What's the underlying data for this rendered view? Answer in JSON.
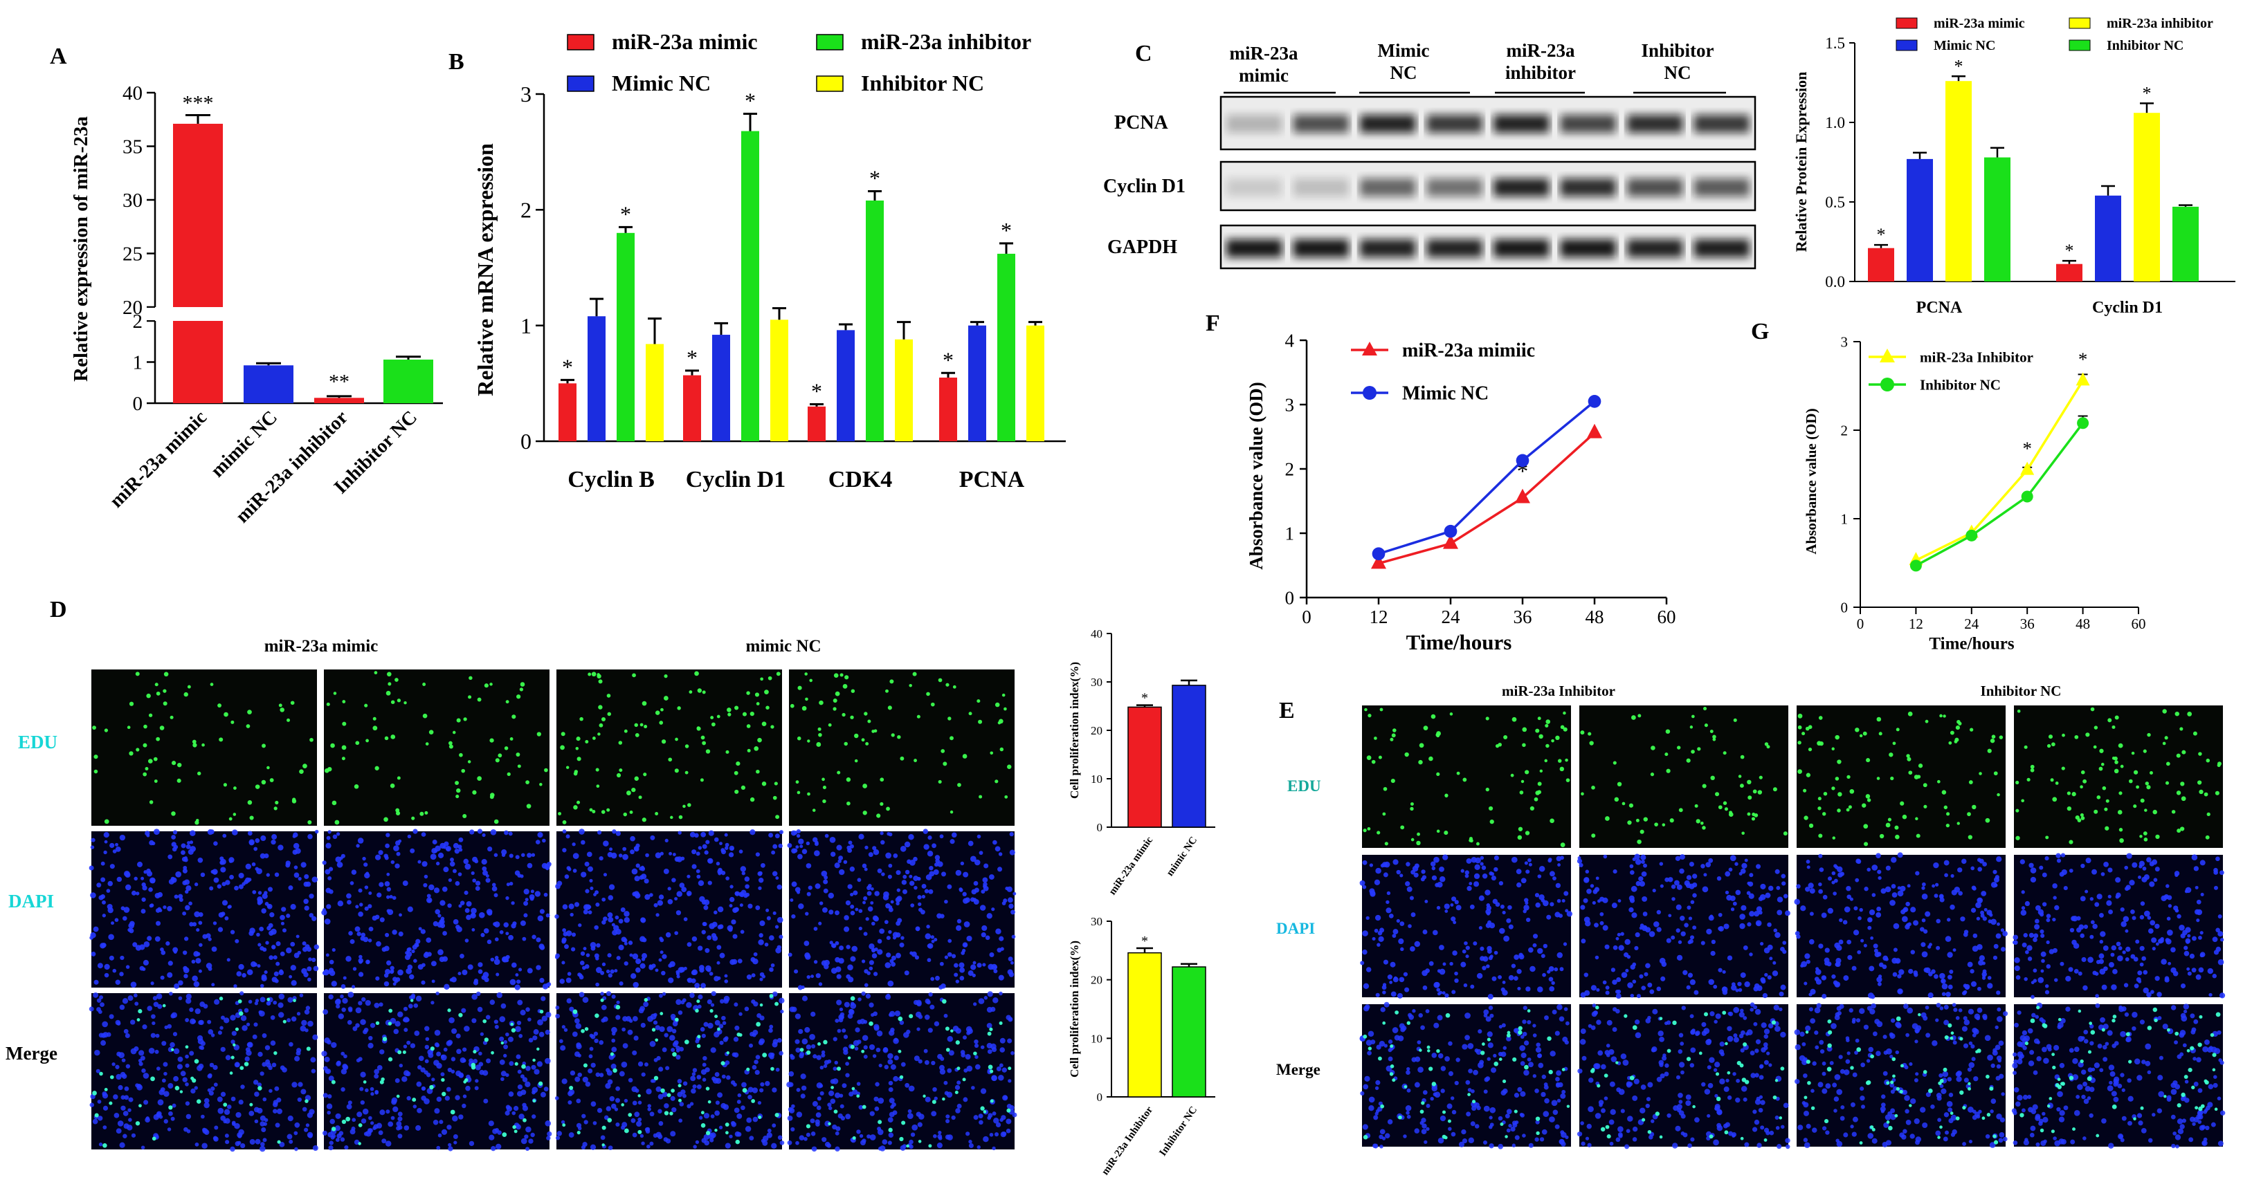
{
  "colors": {
    "red": "#ee1d23",
    "blue": "#1b2de0",
    "green": "#1ae01a",
    "yellow": "#ffff00",
    "black": "#000000",
    "cyan_label": "#17d6d6",
    "teal_label": "#15a89a",
    "fluor_green": "#3cff50",
    "fluor_blue": "#2638ff",
    "blot_bg": "#ececec"
  },
  "panels": {
    "A": {
      "letter": "A"
    },
    "B": {
      "letter": "B"
    },
    "C": {
      "letter": "C",
      "lanes": [
        {
          "line1": "miR-23a",
          "line2": "mimic"
        },
        {
          "line1": "Mimic",
          "line2": "NC"
        },
        {
          "line1": "miR-23a",
          "line2": "inhibitor"
        },
        {
          "line1": "Inhibitor",
          "line2": "NC"
        }
      ],
      "rows": [
        "PCNA",
        "Cyclin D1",
        "GAPDH"
      ]
    },
    "D": {
      "letter": "D",
      "headers": [
        "miR-23a mimic",
        "mimic NC"
      ],
      "rows": [
        "EDU",
        "DAPI",
        "Merge"
      ]
    },
    "E": {
      "letter": "E",
      "headers": [
        "miR-23a Inhibitor",
        "Inhibitor NC"
      ],
      "rows": [
        "EDU",
        "DAPI",
        "Merge"
      ]
    },
    "F": {
      "letter": "F"
    },
    "G": {
      "letter": "G"
    }
  },
  "chart_data": [
    {
      "id": "A",
      "type": "bar",
      "categories": [
        "miR-23a mimic",
        "mimic NC",
        "miR-23a inhibitor",
        "Inhibitor NC"
      ],
      "values": [
        37.1,
        0.92,
        0.13,
        1.06
      ],
      "errors": [
        0.8,
        0.05,
        0.04,
        0.07
      ],
      "colors": [
        "red",
        "blue",
        "red",
        "green"
      ],
      "significance": [
        "***",
        "",
        "**",
        ""
      ],
      "ylabel": "Relative expression of miR-23a",
      "axis_break": {
        "lower": [
          0,
          2
        ],
        "upper": [
          20,
          40
        ]
      },
      "lower_ticks": [
        "0",
        "1",
        "2"
      ],
      "upper_ticks": [
        "20",
        "25",
        "30",
        "35",
        "40"
      ]
    },
    {
      "id": "B",
      "type": "bar",
      "categories": [
        "Cyclin B",
        "Cyclin D1",
        "CDK4",
        "PCNA"
      ],
      "series": [
        {
          "name": "miR-23a mimic",
          "color": "red",
          "values": [
            0.5,
            0.57,
            0.3,
            0.55
          ],
          "errors": [
            0.03,
            0.04,
            0.02,
            0.04
          ],
          "sig": [
            "*",
            "*",
            "*",
            "*"
          ]
        },
        {
          "name": "Mimic NC",
          "color": "blue",
          "values": [
            1.08,
            0.92,
            0.96,
            1.0
          ],
          "errors": [
            0.15,
            0.1,
            0.05,
            0.03
          ],
          "sig": [
            "",
            "",
            "",
            ""
          ]
        },
        {
          "name": "miR-23a inhibitor",
          "color": "green",
          "values": [
            1.8,
            2.68,
            2.08,
            1.62
          ],
          "errors": [
            0.05,
            0.15,
            0.08,
            0.09
          ],
          "sig": [
            "*",
            "*",
            "*",
            "*"
          ]
        },
        {
          "name": "Inhibitor NC",
          "color": "yellow",
          "values": [
            0.84,
            1.05,
            0.88,
            1.0
          ],
          "errors": [
            0.22,
            0.1,
            0.15,
            0.03
          ],
          "sig": [
            "",
            "",
            "",
            ""
          ]
        }
      ],
      "ylabel": "Relative mRNA expression",
      "ylim": [
        0,
        3
      ],
      "yticks": [
        "0",
        "1",
        "2",
        "3"
      ]
    },
    {
      "id": "C2",
      "type": "bar",
      "categories": [
        "PCNA",
        "Cyclin D1"
      ],
      "series": [
        {
          "name": "miR-23a mimic",
          "color": "red",
          "values": [
            0.21,
            0.11
          ],
          "errors": [
            0.02,
            0.02
          ],
          "sig": [
            "*",
            "*"
          ]
        },
        {
          "name": "Mimic NC",
          "color": "blue",
          "values": [
            0.77,
            0.54
          ],
          "errors": [
            0.04,
            0.06
          ],
          "sig": [
            "",
            ""
          ]
        },
        {
          "name": "miR-23a inhibitor",
          "color": "yellow",
          "values": [
            1.26,
            1.06
          ],
          "errors": [
            0.03,
            0.06
          ],
          "sig": [
            "*",
            "*"
          ]
        },
        {
          "name": "Inhibitor NC",
          "color": "green",
          "values": [
            0.78,
            0.47
          ],
          "errors": [
            0.06,
            0.01
          ],
          "sig": [
            "",
            ""
          ]
        }
      ],
      "ylabel": "Relative Protein Expression",
      "ylim": [
        0,
        1.5
      ],
      "yticks": [
        "0.0",
        "0.5",
        "1.0",
        "1.5"
      ]
    },
    {
      "id": "F",
      "type": "line",
      "x": [
        12,
        24,
        36,
        48
      ],
      "series": [
        {
          "name": "miR-23a mimiic",
          "color": "red",
          "marker": "triangle",
          "values": [
            0.53,
            0.84,
            1.55,
            2.56
          ],
          "sig": [
            "",
            "",
            "*",
            "*"
          ]
        },
        {
          "name": "Mimic NC",
          "color": "blue",
          "marker": "circle",
          "values": [
            0.68,
            1.03,
            2.13,
            3.05
          ],
          "sig": [
            "",
            "",
            "",
            ""
          ]
        }
      ],
      "xlabel": "Time/hours",
      "ylabel": "Absorbance value (OD)",
      "xlim": [
        0,
        60
      ],
      "ylim": [
        0,
        4
      ],
      "xticks": [
        "0",
        "12",
        "24",
        "36",
        "48",
        "60"
      ],
      "yticks": [
        "0",
        "1",
        "2",
        "3",
        "4"
      ]
    },
    {
      "id": "G",
      "type": "line",
      "x": [
        12,
        24,
        36,
        48
      ],
      "series": [
        {
          "name": "miR-23a Inhibitor",
          "color": "yellow",
          "marker": "triangle",
          "values": [
            0.53,
            0.84,
            1.55,
            2.56
          ],
          "errors": [
            0,
            0,
            0.03,
            0.07
          ],
          "sig": [
            "",
            "",
            "*",
            "*"
          ]
        },
        {
          "name": "Inhibitor NC",
          "color": "green",
          "marker": "circle",
          "values": [
            0.47,
            0.81,
            1.25,
            2.08
          ],
          "errors": [
            0,
            0,
            0.03,
            0.08
          ],
          "sig": [
            "",
            "",
            "",
            ""
          ]
        }
      ],
      "xlabel": "Time/hours",
      "ylabel": "Absorbance value (OD)",
      "xlim": [
        0,
        60
      ],
      "ylim": [
        0,
        3
      ],
      "xticks": [
        "0",
        "12",
        "24",
        "36",
        "48",
        "60"
      ],
      "yticks": [
        "0",
        "1",
        "2",
        "3"
      ]
    },
    {
      "id": "D-index",
      "type": "bar",
      "categories": [
        "miR-23a mimic",
        "mimic NC"
      ],
      "values": [
        24.8,
        29.3
      ],
      "errors": [
        0.4,
        1.0
      ],
      "colors": [
        "red",
        "blue"
      ],
      "significance": [
        "*",
        ""
      ],
      "ylabel": "Cell proliferation index(%)",
      "ylim": [
        0,
        40
      ],
      "yticks": [
        "0",
        "10",
        "20",
        "30",
        "40"
      ]
    },
    {
      "id": "E-index",
      "type": "bar",
      "categories": [
        "miR-23a Inhibitor",
        "Inhibitor NC"
      ],
      "values": [
        24.6,
        22.2
      ],
      "errors": [
        0.8,
        0.5
      ],
      "colors": [
        "yellow",
        "green"
      ],
      "significance": [
        "*",
        ""
      ],
      "ylabel": "Cell proliferation index(%)",
      "ylim": [
        0,
        30
      ],
      "yticks": [
        "0",
        "10",
        "20",
        "30"
      ]
    }
  ]
}
